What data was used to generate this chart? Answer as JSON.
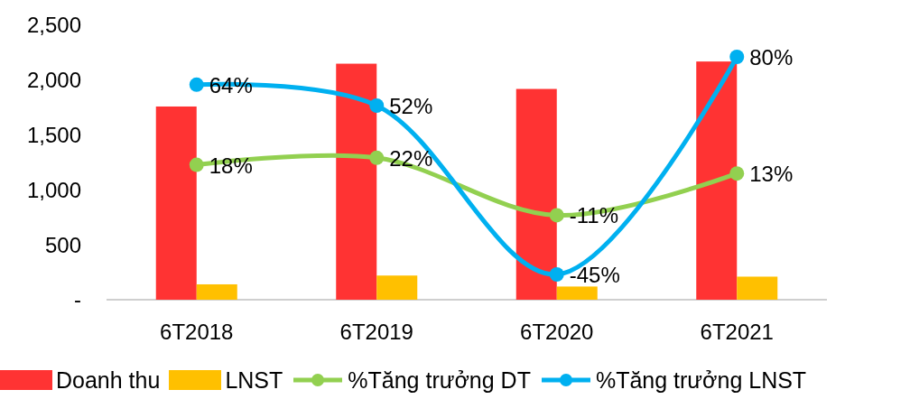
{
  "chart_data": {
    "type": "bar",
    "categories": [
      "6T2018",
      "6T2019",
      "6T2020",
      "6T2021"
    ],
    "series": [
      {
        "name": "Doanh thu",
        "color": "#ff3333",
        "values": [
          1760,
          2150,
          1920,
          2170
        ]
      },
      {
        "name": "LNST",
        "color": "#ffc000",
        "values": [
          140,
          220,
          120,
          210
        ]
      },
      {
        "name": "%Tăng trưởng DT",
        "type": "line",
        "axis": "y2",
        "color": "#92d050",
        "values": [
          18,
          22,
          -11,
          13
        ],
        "value_labels": [
          "18%",
          "22%",
          "-11%",
          "13%"
        ]
      },
      {
        "name": "%Tăng trưởng LNST",
        "type": "line",
        "axis": "y2",
        "color": "#00b0f0",
        "values": [
          64,
          52,
          -45,
          80
        ],
        "value_labels": [
          "64%",
          "52%",
          "-45%",
          "80%"
        ]
      }
    ],
    "ylim": [
      0,
      2500
    ],
    "yticks": [
      {
        "value": 0,
        "label": "-"
      },
      {
        "value": 500,
        "label": "500"
      },
      {
        "value": 1000,
        "label": "1,000"
      },
      {
        "value": 1500,
        "label": "1,500"
      },
      {
        "value": 2000,
        "label": "2,000"
      },
      {
        "value": 2500,
        "label": "2,500"
      }
    ],
    "marker": "circle",
    "legend": "bottom"
  }
}
